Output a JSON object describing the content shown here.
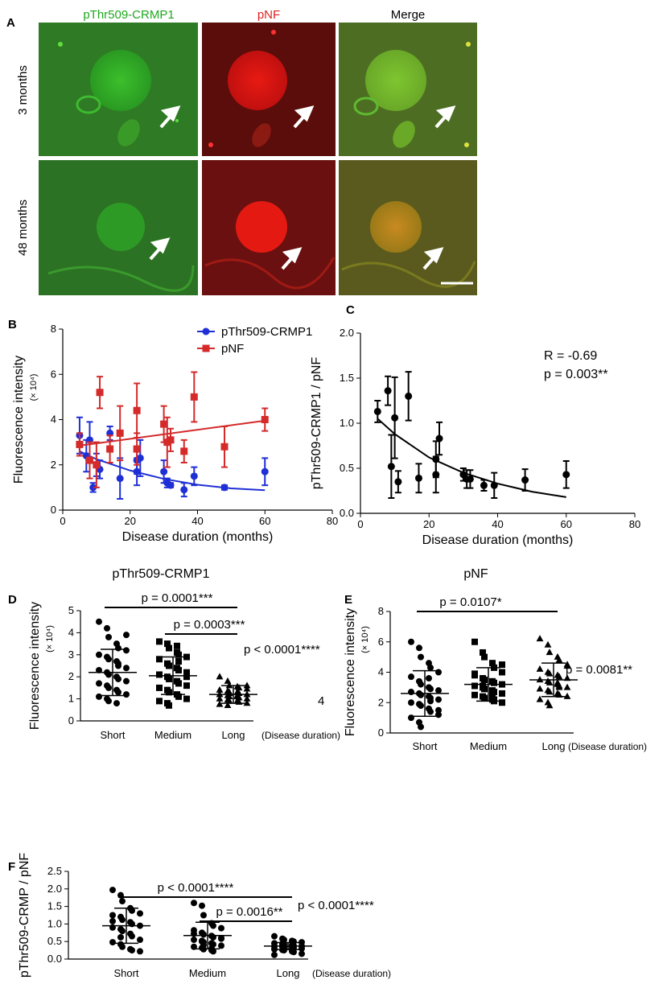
{
  "panel_a": {
    "letter": "A",
    "columns": [
      "pThr509-CRMP1",
      "pNF",
      "Merge"
    ],
    "column_colors": [
      "#1fa81f",
      "#e02020",
      "#000000"
    ],
    "rows": [
      "3 months",
      "48 months"
    ],
    "cell_colors": {
      "green": "#2e8a26",
      "red": "#7a1410",
      "merge": "#5a6e22"
    }
  },
  "chart_data": [
    {
      "panel": "B",
      "type": "scatter",
      "xlabel": "Disease duration (months)",
      "ylabel": "Fluorescence intensity",
      "yunit": "(× 10⁴)",
      "xlim": [
        0,
        80
      ],
      "ylim": [
        0,
        8
      ],
      "xticks": [
        "0",
        "20",
        "40",
        "60",
        "80"
      ],
      "yticks": [
        "0",
        "2",
        "4",
        "6",
        "8"
      ],
      "legend_position": "top",
      "series": [
        {
          "name": "pThr509-CRMP1",
          "color": "#1f2fd6",
          "marker": "circle",
          "points": [
            [
              5,
              3.3
            ],
            [
              7,
              2.4
            ],
            [
              8,
              3.1
            ],
            [
              9,
              1.0
            ],
            [
              10,
              2.0
            ],
            [
              11,
              1.8
            ],
            [
              14,
              3.4
            ],
            [
              17,
              1.4
            ],
            [
              22,
              1.7
            ],
            [
              22,
              2.2
            ],
            [
              23,
              2.3
            ],
            [
              30,
              1.7
            ],
            [
              31,
              1.2
            ],
            [
              32,
              1.1
            ],
            [
              36,
              0.9
            ],
            [
              39,
              1.5
            ],
            [
              48,
              1.0
            ],
            [
              60,
              1.7
            ]
          ],
          "errors": [
            0.8,
            0.7,
            0.8,
            0.2,
            0.5,
            0.4,
            0.3,
            0.9,
            0.6,
            0.6,
            0.8,
            0.5,
            0.2,
            0.1,
            0.3,
            0.4,
            0.1,
            0.6
          ],
          "fit": [
            [
              5,
              2.6
            ],
            [
              10,
              2.25
            ],
            [
              20,
              1.75
            ],
            [
              30,
              1.38
            ],
            [
              40,
              1.12
            ],
            [
              50,
              0.96
            ],
            [
              60,
              0.88
            ]
          ]
        },
        {
          "name": "pNF",
          "color": "#d42a2a",
          "marker": "square",
          "points": [
            [
              5,
              2.9
            ],
            [
              8,
              2.2
            ],
            [
              10,
              2.0
            ],
            [
              11,
              5.2
            ],
            [
              14,
              2.7
            ],
            [
              17,
              3.4
            ],
            [
              22,
              4.4
            ],
            [
              22,
              2.7
            ],
            [
              30,
              3.8
            ],
            [
              31,
              3.0
            ],
            [
              32,
              3.1
            ],
            [
              36,
              2.6
            ],
            [
              39,
              5.0
            ],
            [
              48,
              2.8
            ],
            [
              60,
              4.0
            ]
          ],
          "errors": [
            0.5,
            0.8,
            1.0,
            0.7,
            0.6,
            1.2,
            1.2,
            0.7,
            0.8,
            1.1,
            0.5,
            0.5,
            1.1,
            0.9,
            0.5
          ],
          "fit": [
            [
              5,
              2.85
            ],
            [
              60,
              3.95
            ]
          ]
        }
      ]
    },
    {
      "panel": "C",
      "type": "scatter",
      "xlabel": "Disease duration (months)",
      "ylabel": "pThr509-CRMP1 / pNF",
      "xlim": [
        0,
        80
      ],
      "ylim": [
        0,
        2.0
      ],
      "xticks": [
        "0",
        "20",
        "40",
        "60",
        "80"
      ],
      "yticks": [
        "0.0",
        "0.5",
        "1.0",
        "1.5",
        "2.0"
      ],
      "annotations": [
        "R = -0.69",
        "p = 0.003**"
      ],
      "series": [
        {
          "color": "#000000",
          "marker": "circle",
          "points": [
            [
              5,
              1.13
            ],
            [
              8,
              1.36
            ],
            [
              9,
              0.52
            ],
            [
              10,
              1.06
            ],
            [
              11,
              0.35
            ],
            [
              14,
              1.3
            ],
            [
              17,
              0.39
            ],
            [
              22,
              0.6
            ],
            [
              22,
              0.43
            ],
            [
              23,
              0.83
            ],
            [
              30,
              0.43
            ],
            [
              31,
              0.38
            ],
            [
              32,
              0.38
            ],
            [
              36,
              0.31
            ],
            [
              39,
              0.31
            ],
            [
              48,
              0.37
            ],
            [
              60,
              0.43
            ]
          ],
          "errors": [
            0.12,
            0.16,
            0.35,
            0.45,
            0.12,
            0.27,
            0.16,
            0.2,
            0.2,
            0.18,
            0.07,
            0.1,
            0.1,
            0.06,
            0.14,
            0.12,
            0.15
          ],
          "fit": [
            [
              5,
              1.05
            ],
            [
              10,
              0.88
            ],
            [
              20,
              0.62
            ],
            [
              30,
              0.45
            ],
            [
              40,
              0.33
            ],
            [
              50,
              0.24
            ],
            [
              60,
              0.18
            ]
          ]
        }
      ]
    },
    {
      "panel": "D",
      "type": "scatter",
      "title": "pThr509-CRMP1",
      "ylabel": "Fluorescence intensity",
      "yunit": "(× 10⁴)",
      "ylim": [
        0,
        5
      ],
      "yticks": [
        "0",
        "1",
        "2",
        "3",
        "4",
        "5"
      ],
      "categories": [
        "Short",
        "Medium",
        "Long"
      ],
      "xnote": "(Disease duration)",
      "means": [
        2.2,
        2.05,
        1.2
      ],
      "sds": [
        1.05,
        0.85,
        0.4
      ],
      "markers": [
        "circle",
        "square",
        "triangle"
      ],
      "groups": [
        [
          4.5,
          4.2,
          3.8,
          3.5,
          3.3,
          3.2,
          3.0,
          2.9,
          2.8,
          2.7,
          2.5,
          2.4,
          2.3,
          2.2,
          2.1,
          2.0,
          1.9,
          1.8,
          1.7,
          1.6,
          1.5,
          1.4,
          1.3,
          1.2,
          1.1,
          1.0,
          0.9,
          0.8,
          2.6,
          3.9
        ],
        [
          3.6,
          3.5,
          3.3,
          3.1,
          3.0,
          2.9,
          2.8,
          2.6,
          2.5,
          2.4,
          2.3,
          2.2,
          2.1,
          2.0,
          1.9,
          1.8,
          1.7,
          1.6,
          1.5,
          1.4,
          1.3,
          1.2,
          1.1,
          1.0,
          0.9,
          0.8,
          0.7,
          3.4,
          2.7,
          2.0
        ],
        [
          2.0,
          1.8,
          1.6,
          1.55,
          1.5,
          1.45,
          1.4,
          1.35,
          1.3,
          1.3,
          1.25,
          1.2,
          1.2,
          1.15,
          1.1,
          1.1,
          1.05,
          1.0,
          1.0,
          0.95,
          0.9,
          0.9,
          0.85,
          0.8,
          0.75,
          0.7,
          1.25,
          1.15,
          1.05,
          1.6
        ]
      ],
      "comparisons": [
        {
          "from": 0,
          "to": 2,
          "label": "p = 0.0001***"
        },
        {
          "from": 1,
          "to": 2,
          "label": "p = 0.0003***"
        }
      ],
      "overall": "p < 0.0001****",
      "side_label": "4"
    },
    {
      "panel": "E",
      "type": "scatter",
      "title": "pNF",
      "ylabel": "Fluorescence intensity",
      "yunit": "(× 10⁴)",
      "ylim": [
        0,
        8
      ],
      "yticks": [
        "0",
        "2",
        "4",
        "6",
        "8"
      ],
      "categories": [
        "Short",
        "Medium",
        "Long"
      ],
      "xnote": "(Disease duration)",
      "means": [
        2.6,
        3.2,
        3.5
      ],
      "sds": [
        1.5,
        1.1,
        1.1
      ],
      "markers": [
        "circle",
        "square",
        "triangle"
      ],
      "groups": [
        [
          6.0,
          5.6,
          5.0,
          4.6,
          4.3,
          4.0,
          3.7,
          3.4,
          3.2,
          3.0,
          2.9,
          2.8,
          2.7,
          2.6,
          2.5,
          2.4,
          2.3,
          2.2,
          2.0,
          1.9,
          1.8,
          1.6,
          1.4,
          1.2,
          1.0,
          0.7,
          0.4,
          3.6,
          2.1,
          1.5
        ],
        [
          6.0,
          5.3,
          5.0,
          4.6,
          4.3,
          4.0,
          3.8,
          3.6,
          3.5,
          3.4,
          3.3,
          3.2,
          3.1,
          3.0,
          2.9,
          2.8,
          2.7,
          2.6,
          2.5,
          2.4,
          2.3,
          2.2,
          2.1,
          2.0,
          3.9,
          3.1,
          2.9,
          2.5,
          2.2,
          4.5
        ],
        [
          6.2,
          5.8,
          5.3,
          5.0,
          4.8,
          4.5,
          4.2,
          4.0,
          3.9,
          3.8,
          3.7,
          3.6,
          3.5,
          3.4,
          3.3,
          3.2,
          3.1,
          3.0,
          2.9,
          2.8,
          2.7,
          2.6,
          2.5,
          2.4,
          2.2,
          2.0,
          1.8,
          3.3,
          3.0,
          4.4
        ]
      ],
      "comparisons": [
        {
          "from": 0,
          "to": 2,
          "label": "p = 0.0107*"
        }
      ],
      "overall": "p = 0.0081**"
    },
    {
      "panel": "F",
      "type": "scatter",
      "ylabel": "pThr509-CRMP / pNF",
      "ylim": [
        0,
        2.5
      ],
      "yticks": [
        "0.0",
        "0.5",
        "1.0",
        "1.5",
        "2.0",
        "2.5"
      ],
      "categories": [
        "Short",
        "Medium",
        "Long"
      ],
      "xnote": "(Disease duration)",
      "means": [
        0.95,
        0.67,
        0.37
      ],
      "sds": [
        0.5,
        0.38,
        0.1
      ],
      "markers": [
        "circle",
        "circle",
        "circle"
      ],
      "groups": [
        [
          1.97,
          1.82,
          1.65,
          1.45,
          1.38,
          1.3,
          1.25,
          1.2,
          1.12,
          1.05,
          1.0,
          0.95,
          0.9,
          0.85,
          0.8,
          0.72,
          0.65,
          0.55,
          0.48,
          0.42,
          0.35,
          0.28,
          0.25,
          0.22,
          1.08,
          0.62
        ],
        [
          1.6,
          1.52,
          1.25,
          1.02,
          0.95,
          0.88,
          0.82,
          0.75,
          0.7,
          0.66,
          0.62,
          0.58,
          0.55,
          0.52,
          0.48,
          0.45,
          0.42,
          0.38,
          0.35,
          0.32,
          0.28,
          0.25,
          0.22,
          0.6,
          0.72,
          0.5,
          0.4,
          0.3
        ],
        [
          0.65,
          0.58,
          0.55,
          0.52,
          0.5,
          0.48,
          0.45,
          0.44,
          0.42,
          0.4,
          0.38,
          0.37,
          0.36,
          0.35,
          0.34,
          0.33,
          0.32,
          0.3,
          0.28,
          0.26,
          0.25,
          0.22,
          0.2,
          0.15,
          0.12,
          0.4,
          0.31,
          0.27
        ]
      ],
      "comparisons": [
        {
          "from": 0,
          "to": 2,
          "label": "p < 0.0001****"
        },
        {
          "from": 1,
          "to": 2,
          "label": "p = 0.0016**"
        }
      ],
      "overall": "p < 0.0001****"
    }
  ]
}
